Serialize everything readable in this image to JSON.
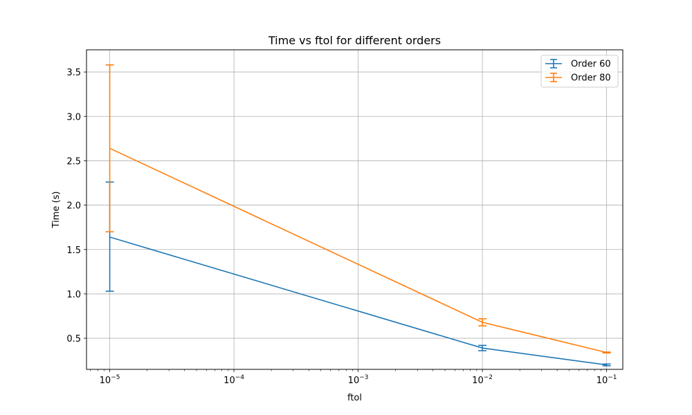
{
  "chart_data": {
    "type": "line",
    "title": "Time vs ftol for different orders",
    "xlabel": "ftol",
    "ylabel": "Time (s)",
    "x_scale": "log",
    "xlim": [
      6.5e-06,
      0.135
    ],
    "ylim": [
      0.15,
      3.75
    ],
    "grid": true,
    "legend_position": "top-right",
    "x_ticks": [
      {
        "value": 1e-05,
        "base": "10",
        "exp": "−5"
      },
      {
        "value": 0.0001,
        "base": "10",
        "exp": "−4"
      },
      {
        "value": 0.001,
        "base": "10",
        "exp": "−3"
      },
      {
        "value": 0.01,
        "base": "10",
        "exp": "−2"
      },
      {
        "value": 0.1,
        "base": "10",
        "exp": "−1"
      }
    ],
    "y_ticks": [
      {
        "value": 0.5,
        "label": "0.5"
      },
      {
        "value": 1.0,
        "label": "1.0"
      },
      {
        "value": 1.5,
        "label": "1.5"
      },
      {
        "value": 2.0,
        "label": "2.0"
      },
      {
        "value": 2.5,
        "label": "2.5"
      },
      {
        "value": 3.0,
        "label": "3.0"
      },
      {
        "value": 3.5,
        "label": "3.5"
      }
    ],
    "series": [
      {
        "name": "Order 60",
        "color": "#1f77b4",
        "x": [
          1e-05,
          0.01,
          0.1
        ],
        "y": [
          1.64,
          0.39,
          0.2
        ],
        "err_low": [
          1.03,
          0.36,
          0.19
        ],
        "err_high": [
          2.26,
          0.42,
          0.21
        ]
      },
      {
        "name": "Order 80",
        "color": "#ff7f0e",
        "x": [
          1e-05,
          0.01,
          0.1
        ],
        "y": [
          2.64,
          0.68,
          0.34
        ],
        "err_low": [
          1.7,
          0.64,
          0.335
        ],
        "err_high": [
          3.58,
          0.72,
          0.345
        ]
      }
    ]
  }
}
